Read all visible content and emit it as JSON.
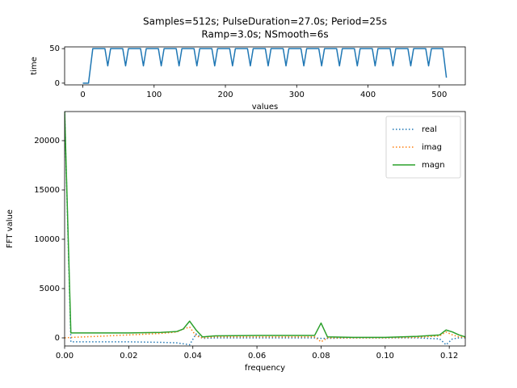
{
  "chart_data": [
    {
      "type": "line",
      "title": [
        "Samples=512s; PulseDuration=27.0s; Period=25s",
        "Ramp=3.0s; NSmooth=6s"
      ],
      "x_label": "values",
      "y_label": "time",
      "x": [
        0,
        8,
        14,
        31,
        35,
        39,
        56,
        60,
        64,
        81,
        85,
        89,
        106,
        110,
        114,
        131,
        135,
        139,
        156,
        160,
        164,
        181,
        185,
        189,
        206,
        210,
        214,
        231,
        235,
        239,
        256,
        260,
        264,
        281,
        285,
        289,
        306,
        310,
        314,
        331,
        335,
        339,
        356,
        360,
        364,
        381,
        385,
        389,
        406,
        410,
        414,
        431,
        435,
        439,
        456,
        460,
        464,
        481,
        485,
        489,
        505,
        510
      ],
      "series": [
        {
          "name": "time",
          "color": "#1f77b4",
          "style": "solid",
          "values": [
            0,
            0,
            50,
            50,
            25,
            50,
            50,
            25,
            50,
            50,
            25,
            50,
            50,
            25,
            50,
            50,
            25,
            50,
            50,
            25,
            50,
            50,
            25,
            50,
            50,
            25,
            50,
            50,
            25,
            50,
            50,
            25,
            50,
            50,
            25,
            50,
            50,
            25,
            50,
            50,
            25,
            50,
            50,
            25,
            50,
            50,
            25,
            50,
            50,
            25,
            50,
            50,
            25,
            50,
            50,
            25,
            50,
            50,
            25,
            50,
            50,
            8
          ]
        }
      ],
      "xlim": [
        -25.5,
        536.5
      ],
      "xticks": [
        0,
        100,
        200,
        300,
        400,
        500
      ],
      "ylim": [
        -2.5,
        52.5
      ],
      "yticks": [
        0,
        50
      ]
    },
    {
      "type": "line",
      "x_label": "frequency",
      "y_label": "FFT value",
      "x": [
        0,
        0.00195,
        0.01,
        0.02,
        0.03,
        0.035,
        0.037,
        0.039,
        0.041,
        0.043,
        0.047,
        0.06,
        0.07,
        0.078,
        0.08,
        0.082,
        0.09,
        0.1,
        0.11,
        0.117,
        0.119,
        0.121,
        0.123,
        0.125
      ],
      "series": [
        {
          "name": "real",
          "color": "#1f77b4",
          "style": "dotted",
          "values": [
            23000,
            -400,
            -400,
            -400,
            -450,
            -500,
            -600,
            -700,
            400,
            -50,
            0,
            0,
            0,
            0,
            -50,
            -50,
            0,
            0,
            0,
            -100,
            -700,
            -100,
            0,
            0
          ]
        },
        {
          "name": "imag",
          "color": "#ff7f0e",
          "style": "dotted",
          "values": [
            0,
            50,
            150,
            300,
            450,
            600,
            900,
            1100,
            200,
            0,
            100,
            100,
            100,
            100,
            -400,
            0,
            0,
            0,
            50,
            200,
            600,
            300,
            100,
            50
          ]
        },
        {
          "name": "magn",
          "color": "#2ca02c",
          "style": "solid",
          "values": [
            23000,
            500,
            500,
            500,
            550,
            650,
            900,
            1700,
            800,
            100,
            200,
            250,
            250,
            250,
            1500,
            100,
            50,
            50,
            150,
            300,
            800,
            600,
            300,
            100
          ]
        }
      ],
      "xlim": [
        0,
        0.125
      ],
      "xticks": [
        {
          "value": 0,
          "label": "0.00"
        },
        {
          "value": 0.02,
          "label": "0.02"
        },
        {
          "value": 0.04,
          "label": "0.04"
        },
        {
          "value": 0.06,
          "label": "0.06"
        },
        {
          "value": 0.08,
          "label": "0.08"
        },
        {
          "value": 0.1,
          "label": "0.10"
        },
        {
          "value": 0.12,
          "label": "0.12"
        }
      ],
      "ylim": [
        -820,
        22950
      ],
      "yticks": [
        0,
        5000,
        10000,
        15000,
        20000
      ],
      "legend": "upper right"
    }
  ]
}
